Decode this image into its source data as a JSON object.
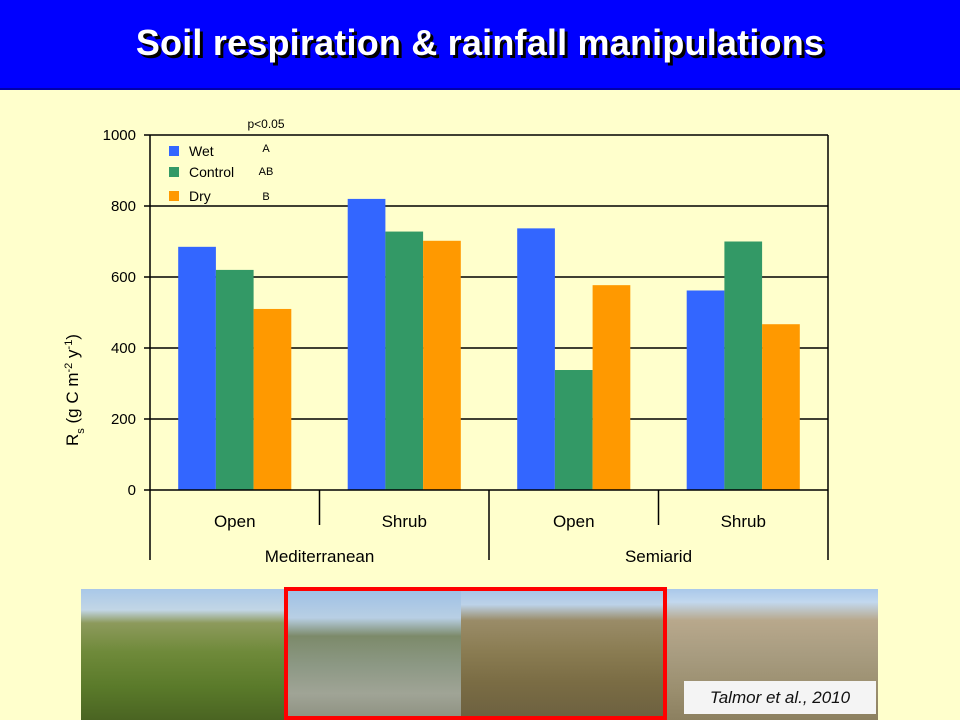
{
  "title": "Soil respiration & rainfall manipulations",
  "colors": {
    "title_bg": "#0000ff",
    "page_bg": "#ffffcc",
    "wet": "#3366ff",
    "control": "#339966",
    "dry": "#ff9900",
    "highlight": "#ff0000"
  },
  "chart_data": {
    "type": "bar",
    "ylabel": {
      "base": "R",
      "sub": "s",
      "unit_pre": " (g C m",
      "sup1": "-2",
      "unit_mid": " y",
      "sup2": "-1",
      "unit_post": ")"
    },
    "ylim": [
      0,
      1000
    ],
    "yticks": [
      "0",
      "200",
      "400",
      "600",
      "800",
      "1000"
    ],
    "grid": true,
    "legend_position": "top-left",
    "significance": {
      "header": "p<0.05",
      "letters": [
        "A",
        "AB",
        "B"
      ]
    },
    "categories": [
      "Open",
      "Shrub",
      "Open",
      "Shrub"
    ],
    "groups": [
      "Mediterranean",
      "Semiarid"
    ],
    "series": [
      {
        "name": "Wet",
        "color": "#3366ff",
        "values": [
          685,
          820,
          737,
          562
        ]
      },
      {
        "name": "Control",
        "color": "#339966",
        "values": [
          620,
          728,
          338,
          700
        ]
      },
      {
        "name": "Dry",
        "color": "#ff9900",
        "values": [
          510,
          702,
          577,
          467
        ]
      }
    ]
  },
  "photos": [
    "mediterranean-shrubland-photo",
    "rocky-hillside-photo",
    "semiarid-slope-photo",
    "semiarid-shrubs-photo"
  ],
  "citation": "Talmor et al., 2010"
}
